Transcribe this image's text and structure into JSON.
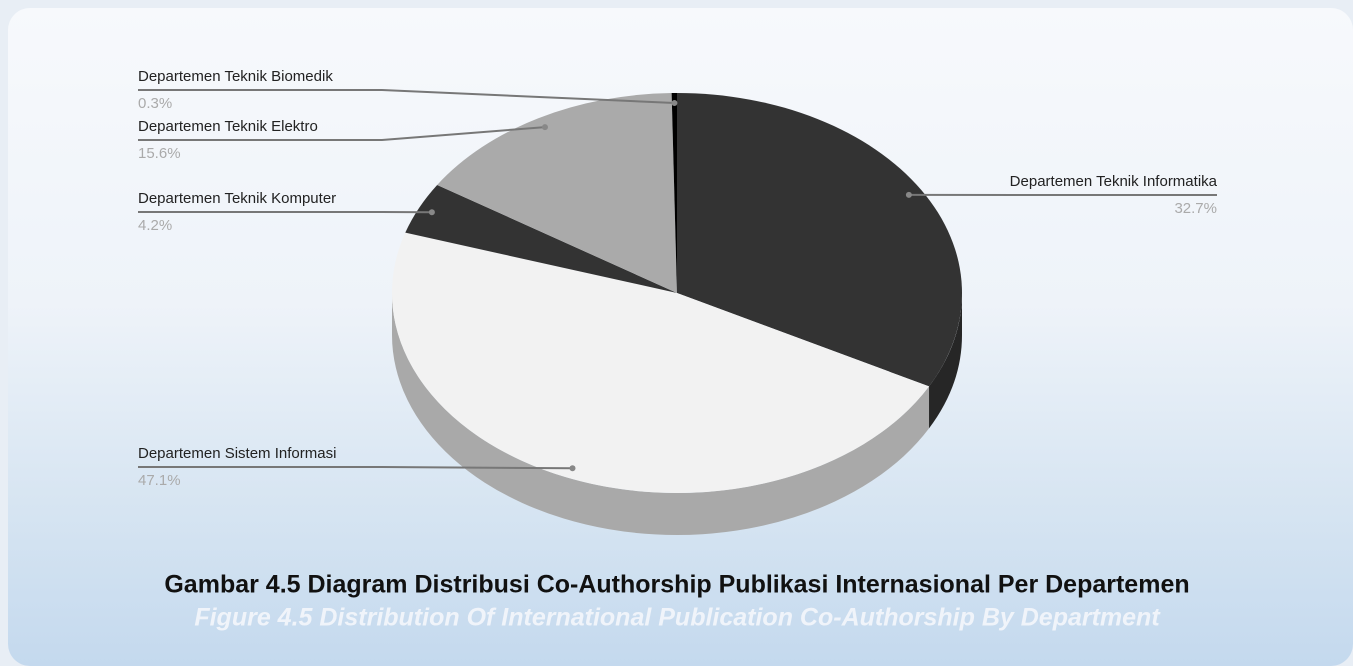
{
  "chart_data": {
    "type": "pie3d",
    "title": "Gambar 4.5 Diagram Distribusi Co-Authorship Publikasi Internasional Per Departemen",
    "subtitle": "Figure 4.5 Distribution Of International Publication Co-Authorship By Department",
    "categories": [
      "Departemen Teknik Informatika",
      "Departemen Sistem Informasi",
      "Departemen Teknik Komputer",
      "Departemen Teknik Elektro",
      "Departemen Teknik Biomedik"
    ],
    "values": [
      32.7,
      47.1,
      4.2,
      15.6,
      0.3
    ],
    "value_labels": [
      "32.7%",
      "47.1%",
      "4.2%",
      "15.6%",
      "0.3%"
    ],
    "colors": [
      "#333333",
      "#f2f2f2",
      "#333333",
      "#aaaaaa",
      "#000000"
    ]
  }
}
